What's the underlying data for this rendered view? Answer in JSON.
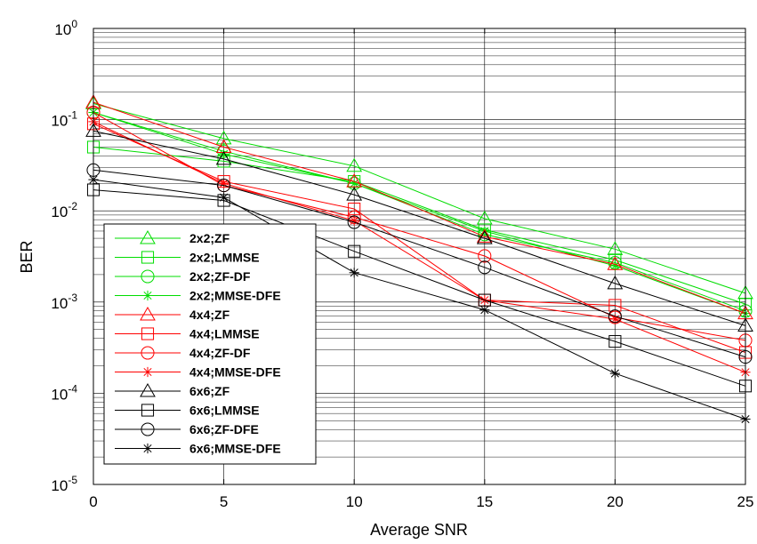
{
  "chart_data": {
    "type": "line",
    "xlabel": "Average SNR",
    "ylabel": "BER",
    "xlim": [
      0,
      25
    ],
    "ylim": [
      1e-05,
      1
    ],
    "yscale": "log",
    "grid": true,
    "legend_position": "bottom-left",
    "x_ticks": [
      "0",
      "5",
      "10",
      "15",
      "20",
      "25"
    ],
    "y_ticks": [
      {
        "base": "10",
        "exp": "-5"
      },
      {
        "base": "10",
        "exp": "-4"
      },
      {
        "base": "10",
        "exp": "-3"
      },
      {
        "base": "10",
        "exp": "-2"
      },
      {
        "base": "10",
        "exp": "-1"
      },
      {
        "base": "10",
        "exp": "0"
      }
    ],
    "x": [
      0,
      5,
      10,
      15,
      20,
      25
    ],
    "series": [
      {
        "name": "2x2;ZF",
        "color": "#00dd00",
        "marker": "triangle",
        "values": [
          0.15,
          0.062,
          0.031,
          0.0082,
          0.0038,
          0.00125
        ]
      },
      {
        "name": "2x2;LMMSE",
        "color": "#00dd00",
        "marker": "square",
        "values": [
          0.05,
          0.035,
          0.021,
          0.0062,
          0.0029,
          0.00095
        ]
      },
      {
        "name": "2x2;ZF-DF",
        "color": "#00dd00",
        "marker": "circle",
        "values": [
          0.12,
          0.045,
          0.02,
          0.0055,
          0.0027,
          0.0008
        ]
      },
      {
        "name": "2x2;MMSE-DFE",
        "color": "#00dd00",
        "marker": "star",
        "values": [
          0.12,
          0.042,
          0.02,
          0.006,
          0.0025,
          0.00075
        ]
      },
      {
        "name": "4x4;ZF",
        "color": "#ff0000",
        "marker": "triangle",
        "values": [
          0.155,
          0.05,
          0.021,
          0.0052,
          0.0026,
          0.00075
        ]
      },
      {
        "name": "4x4;LMMSE",
        "color": "#ff0000",
        "marker": "square",
        "values": [
          0.09,
          0.021,
          0.0105,
          0.00105,
          0.00092,
          0.00028
        ]
      },
      {
        "name": "4x4;ZF-DF",
        "color": "#ff0000",
        "marker": "circle",
        "values": [
          0.12,
          0.019,
          0.0085,
          0.0032,
          0.00068,
          0.00038
        ]
      },
      {
        "name": "4x4;MMSE-DFE",
        "color": "#ff0000",
        "marker": "star",
        "values": [
          0.095,
          0.02,
          0.0078,
          0.00105,
          0.00065,
          0.00017
        ]
      },
      {
        "name": "6x6;ZF",
        "color": "#000000",
        "marker": "triangle",
        "values": [
          0.075,
          0.037,
          0.015,
          0.005,
          0.0016,
          0.00055
        ]
      },
      {
        "name": "6x6;LMMSE",
        "color": "#000000",
        "marker": "square",
        "values": [
          0.017,
          0.013,
          0.0036,
          0.00105,
          0.00037,
          0.00012
        ]
      },
      {
        "name": "6x6;ZF-DFE",
        "color": "#000000",
        "marker": "circle",
        "values": [
          0.028,
          0.019,
          0.0075,
          0.0024,
          0.0007,
          0.00025
        ]
      },
      {
        "name": "6x6;MMSE-DFE",
        "color": "#000000",
        "marker": "star",
        "values": [
          0.022,
          0.014,
          0.0021,
          0.00082,
          0.000165,
          5.2e-05
        ]
      }
    ]
  }
}
